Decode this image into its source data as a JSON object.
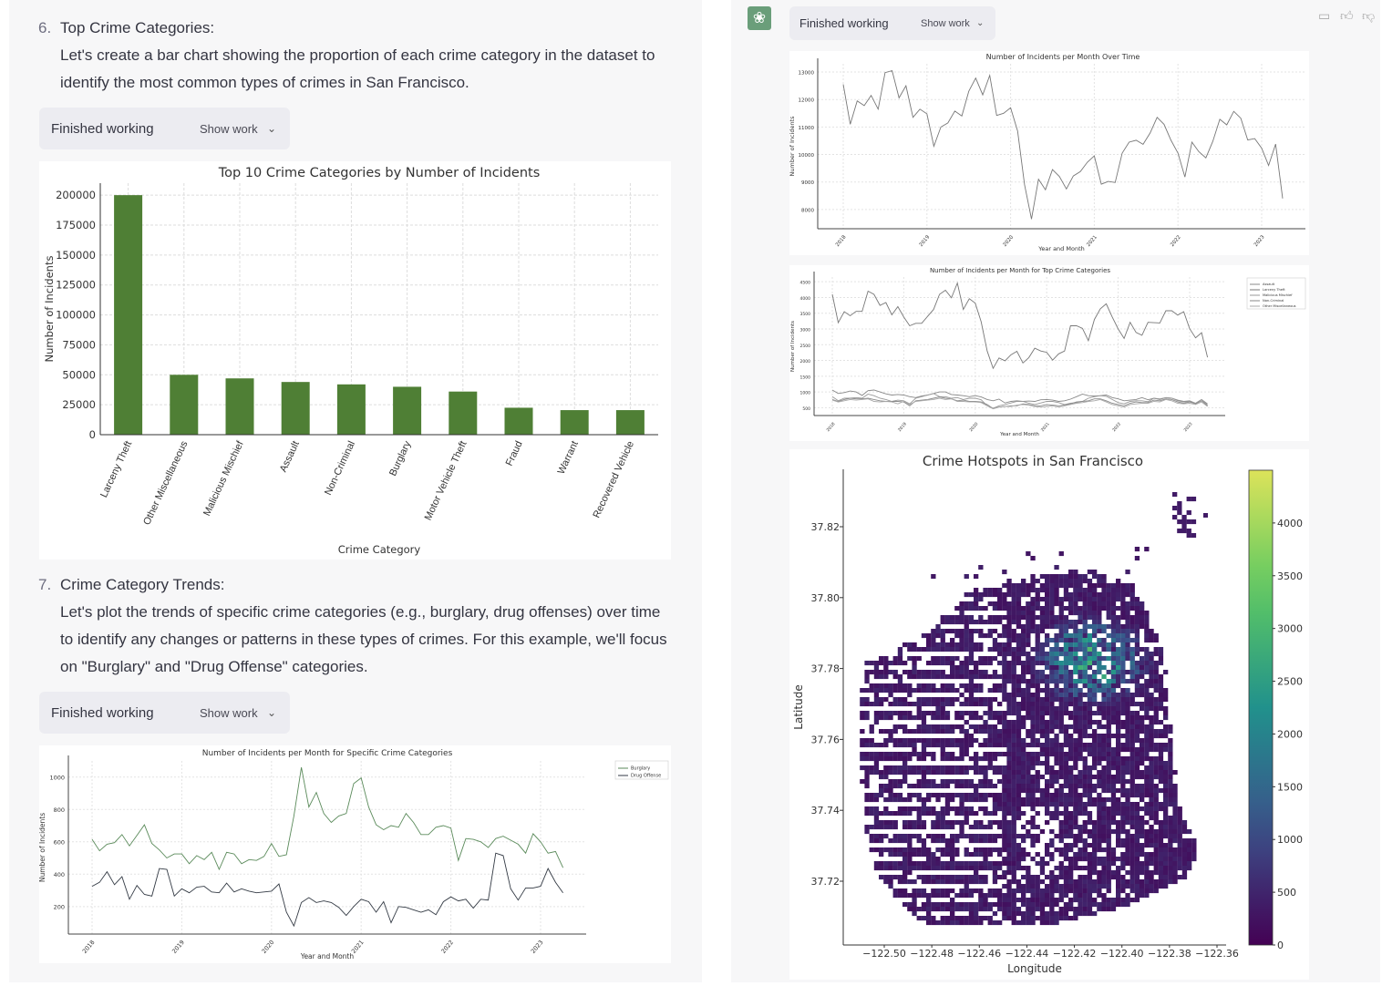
{
  "left": {
    "step6": {
      "number": "6.",
      "title": "Top Crime Categories:",
      "lines": [
        "Let's create a bar chart showing the proportion of each crime category in the dataset to",
        "identify the most common types of crimes in San Francisco."
      ]
    },
    "status1": {
      "label": "Finished working",
      "show_work": "Show work"
    },
    "step7": {
      "number": "7.",
      "title": "Crime Category Trends:",
      "lines": [
        "Let's plot the trends of specific crime categories (e.g., burglary, drug offenses) over time",
        "to identify any changes or patterns in these types of crimes. For this example, we'll focus",
        "on \"Burglary\" and \"Drug Offense\" categories."
      ]
    },
    "status2": {
      "label": "Finished working",
      "show_work": "Show work"
    }
  },
  "right": {
    "avatar_icon": "openai-logo-icon",
    "status": {
      "label": "Finished working",
      "show_work": "Show work"
    },
    "actions": [
      "clipboard-icon",
      "thumbs-up-icon",
      "thumbs-down-icon"
    ]
  },
  "colors": {
    "bar": "#4f7f35",
    "panel": "#f7f7f8",
    "status_bg": "#ececf1",
    "line": "#777777",
    "avatar": "#6a9e7a"
  },
  "chart_data": [
    {
      "type": "bar",
      "title": "Top 10 Crime Categories by Number of Incidents",
      "xlabel": "Crime Category",
      "ylabel": "Number of Incidents",
      "categories": [
        "Larceny Theft",
        "Other Miscellaneous",
        "Malicious Mischief",
        "Assault",
        "Non-Criminal",
        "Burglary",
        "Motor Vehicle Theft",
        "Fraud",
        "Warrant",
        "Recovered Vehicle"
      ],
      "values": [
        200000,
        50000,
        47000,
        44000,
        42000,
        40000,
        36000,
        22500,
        20500,
        20500
      ],
      "yticks": [
        0,
        25000,
        50000,
        75000,
        100000,
        125000,
        150000,
        175000,
        200000
      ],
      "ylim": [
        0,
        210000
      ],
      "grid": true
    },
    {
      "type": "line",
      "title": "Number of Incidents per Month for Specific Crime Categories",
      "xlabel": "Year and Month",
      "ylabel": "Number of Incidents",
      "x_start": "2018-01",
      "x_step": "month",
      "xticks": [
        "2018",
        "2019",
        "2020",
        "2021",
        "2022",
        "2023"
      ],
      "yticks": [
        200,
        400,
        600,
        800,
        1000
      ],
      "ylim": [
        30,
        1100
      ],
      "grid": true,
      "legend": "outside-top-right",
      "series": [
        {
          "name": "Burglary",
          "values": [
            615,
            545,
            585,
            595,
            645,
            575,
            640,
            705,
            590,
            550,
            500,
            525,
            525,
            465,
            515,
            490,
            535,
            430,
            535,
            525,
            465,
            490,
            485,
            510,
            590,
            510,
            520,
            760,
            1060,
            815,
            905,
            775,
            720,
            760,
            775,
            960,
            995,
            815,
            705,
            675,
            700,
            690,
            775,
            720,
            645,
            645,
            690,
            700,
            685,
            485,
            620,
            615,
            600,
            565,
            620,
            635,
            610,
            585,
            530,
            650,
            600,
            530,
            540,
            440
          ]
        },
        {
          "name": "Drug Offense",
          "values": [
            325,
            350,
            415,
            335,
            385,
            245,
            330,
            275,
            265,
            435,
            430,
            265,
            310,
            285,
            320,
            325,
            290,
            285,
            345,
            290,
            310,
            295,
            285,
            290,
            295,
            340,
            165,
            80,
            225,
            255,
            225,
            235,
            225,
            195,
            145,
            200,
            245,
            230,
            165,
            230,
            100,
            200,
            195,
            180,
            165,
            180,
            150,
            230,
            260,
            235,
            245,
            190,
            245,
            240,
            530,
            515,
            310,
            240,
            315,
            315,
            325,
            435,
            350,
            285
          ]
        }
      ]
    },
    {
      "type": "line",
      "title": "Number of Incidents per Month Over Time",
      "xlabel": "Year and Month",
      "ylabel": "Number of Incidents",
      "x_start": "2018-01",
      "x_step": "month",
      "xticks": [
        "2018",
        "2019",
        "2020",
        "2021",
        "2022",
        "2023"
      ],
      "yticks": [
        8000,
        9000,
        10000,
        11000,
        12000,
        13000
      ],
      "ylim": [
        7300,
        13300
      ],
      "grid": true,
      "series": [
        {
          "values": [
            12550,
            11100,
            11950,
            11780,
            12150,
            11650,
            12980,
            13050,
            12060,
            12500,
            11350,
            11650,
            11480,
            10300,
            11000,
            11150,
            11580,
            11400,
            12300,
            12780,
            12170,
            12880,
            11420,
            11500,
            11700,
            10850,
            8900,
            7650,
            9100,
            8720,
            9450,
            9200,
            8750,
            9220,
            9380,
            9720,
            9950,
            8920,
            9020,
            8980,
            10050,
            10450,
            10520,
            10370,
            10780,
            11350,
            11100,
            10520,
            10050,
            9180,
            10450,
            10100,
            9880,
            10480,
            11280,
            11080,
            11570,
            11320,
            10530,
            10580,
            10230,
            9600,
            10380,
            8400
          ]
        }
      ]
    },
    {
      "type": "line",
      "title": "Number of Incidents per Month for Top Crime Categories",
      "xlabel": "Year and Month",
      "ylabel": "Number of Incidents",
      "x_start": "2018-01",
      "x_step": "month",
      "xticks": [
        "2018",
        "2019",
        "2020",
        "2021",
        "2022",
        "2023"
      ],
      "yticks": [
        500,
        1000,
        1500,
        2000,
        2500,
        3000,
        3500,
        4000,
        4500
      ],
      "ylim": [
        250,
        4650
      ],
      "grid": true,
      "legend": "outside-top-right",
      "series": [
        {
          "name": "Assault",
          "values": [
            1060,
            950,
            980,
            1030,
            1000,
            890,
            1040,
            1060,
            1000,
            940,
            900,
            920,
            900,
            850,
            820,
            870,
            900,
            950,
            1000,
            1000,
            920,
            900,
            880,
            850,
            880,
            840,
            760,
            720,
            770,
            650,
            700,
            720,
            700,
            710,
            700,
            750,
            760,
            740,
            700,
            720,
            770,
            850,
            930,
            880,
            870,
            880,
            900,
            820,
            780,
            720,
            740,
            760,
            820,
            750,
            800,
            760,
            820,
            800,
            740,
            700,
            720,
            640,
            760,
            620
          ]
        },
        {
          "name": "Larceny Theft",
          "values": [
            4100,
            3200,
            3550,
            3420,
            3560,
            3560,
            4200,
            4100,
            3750,
            3840,
            3450,
            3710,
            3380,
            3100,
            3180,
            3180,
            3400,
            3620,
            4100,
            4230,
            3990,
            4460,
            3620,
            3960,
            3820,
            3230,
            2300,
            1750,
            2080,
            1990,
            2180,
            2290,
            1920,
            2090,
            2390,
            2300,
            2260,
            2010,
            2210,
            2300,
            3100,
            3100,
            3020,
            2630,
            3300,
            3640,
            3800,
            3380,
            3000,
            2700,
            3210,
            2890,
            2800,
            3210,
            3200,
            3190,
            3580,
            3580,
            3440,
            3550,
            3010,
            2720,
            2880,
            2100
          ]
        },
        {
          "name": "Malicious Mischief",
          "values": [
            850,
            720,
            800,
            800,
            820,
            800,
            930,
            880,
            800,
            760,
            700,
            740,
            720,
            620,
            800,
            850,
            900,
            950,
            850,
            850,
            800,
            820,
            760,
            800,
            800,
            750,
            560,
            480,
            560,
            600,
            650,
            700,
            700,
            640,
            600,
            650,
            700,
            700,
            660,
            600,
            640,
            660,
            700,
            800,
            850,
            880,
            860,
            760,
            660,
            620,
            700,
            720,
            720,
            690,
            800,
            780,
            820,
            800,
            720,
            680,
            700,
            640,
            760,
            580
          ]
        },
        {
          "name": "Non-Criminal",
          "values": [
            760,
            700,
            760,
            800,
            780,
            780,
            800,
            760,
            720,
            700,
            700,
            700,
            680,
            560,
            720,
            740,
            760,
            800,
            840,
            800,
            780,
            720,
            740,
            700,
            700,
            680,
            600,
            470,
            520,
            540,
            560,
            560,
            620,
            600,
            560,
            560,
            600,
            580,
            560,
            580,
            620,
            680,
            700,
            720,
            780,
            780,
            720,
            640,
            600,
            560,
            640,
            680,
            660,
            660,
            740,
            720,
            780,
            760,
            680,
            640,
            680,
            620,
            720,
            560
          ]
        },
        {
          "name": "Other Miscellaneous",
          "values": [
            740,
            680,
            720,
            760,
            740,
            760,
            780,
            700,
            680,
            700,
            680,
            620,
            700,
            600,
            700,
            720,
            740,
            760,
            800,
            760,
            780,
            700,
            700,
            680,
            680,
            660,
            560,
            460,
            520,
            540,
            540,
            580,
            600,
            580,
            540,
            520,
            540,
            560,
            520,
            560,
            600,
            640,
            660,
            700,
            720,
            760,
            680,
            600,
            560,
            520,
            600,
            620,
            640,
            640,
            700,
            680,
            760,
            720,
            640,
            620,
            640,
            600,
            680,
            540
          ]
        }
      ]
    },
    {
      "type": "heatmap",
      "title": "Crime Hotspots in San Francisco",
      "xlabel": "Longitude",
      "ylabel": "Latitude",
      "xticks": [
        "−122.50",
        "−122.48",
        "−122.46",
        "−122.44",
        "−122.42",
        "−122.40",
        "−122.38",
        "−122.36"
      ],
      "yticks": [
        "37.72",
        "37.74",
        "37.76",
        "37.78",
        "37.80",
        "37.82"
      ],
      "colorbar_ticks": [
        "0",
        "500",
        "1000",
        "1500",
        "2000",
        "2500",
        "3000",
        "3500",
        "4000"
      ],
      "colorbar_range": [
        0,
        4500
      ],
      "colormap": "viridis",
      "hotspot": {
        "lon": -122.41,
        "lat": 37.785
      }
    }
  ]
}
